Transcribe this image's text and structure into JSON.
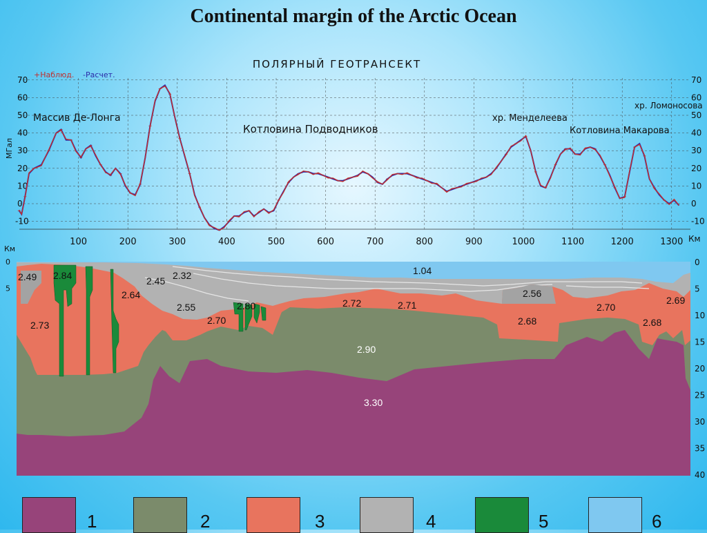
{
  "title": "Continental margin of the Arctic Ocean",
  "gravity": {
    "heading": "ПОЛЯРНЫЙ ГЕОТРАНСЕКТ",
    "legend_observed": "+Наблюд.",
    "legend_calculated": "-Расчет.",
    "y_unit": "МГал",
    "x_unit": "Км",
    "observed_color": "#c0302e",
    "calculated_color": "#2a2aa8",
    "y_ticks": [
      "70",
      "60",
      "50",
      "40",
      "30",
      "20",
      "10",
      "0",
      "-10"
    ],
    "x_ticks": [
      "100",
      "200",
      "300",
      "400",
      "500",
      "600",
      "700",
      "800",
      "900",
      "1000",
      "1100",
      "1200",
      "1300"
    ],
    "labels": {
      "de_long": "Массив Де-Лонга",
      "podvodnikov": "Котловина Подводников",
      "mendeleev": "хр. Менделеева",
      "lomonosov": "хр. Ломоносова",
      "makarov": "Котловина Макарова"
    }
  },
  "section": {
    "y_unit": "Км",
    "depth_ticks": [
      "0",
      "5",
      "10",
      "15",
      "20",
      "25",
      "30",
      "35",
      "40"
    ],
    "left_ticks": [
      "0",
      "5"
    ],
    "densities": {
      "d104": "1.04",
      "d249": "2.49",
      "d284": "2.84",
      "d245": "2.45",
      "d232": "2.32",
      "d264": "2.64",
      "d273": "2.73",
      "d255": "2.55",
      "d280": "2.80",
      "d270a": "2.70",
      "d272": "2.72",
      "d271": "2.71",
      "d256": "2.56",
      "d268a": "2.68",
      "d270b": "2.70",
      "d269": "2.69",
      "d268b": "2.68",
      "d290": "2.90",
      "d330": "3.30"
    },
    "colors": {
      "mantle": "#97447a",
      "lower_crust": "#7b8b6b",
      "upper_crust": "#e8745e",
      "sediment": "#b2b2b2",
      "intrusion": "#1a8a3a",
      "water": "#7fc8f0"
    }
  },
  "legend": [
    {
      "number": "1",
      "color": "#97447a"
    },
    {
      "number": "2",
      "color": "#7b8b6b"
    },
    {
      "number": "3",
      "color": "#e8745e"
    },
    {
      "number": "4",
      "color": "#b2b2b2"
    },
    {
      "number": "5",
      "color": "#1a8a3a"
    },
    {
      "number": "6",
      "color": "#7fc8f0"
    }
  ]
}
